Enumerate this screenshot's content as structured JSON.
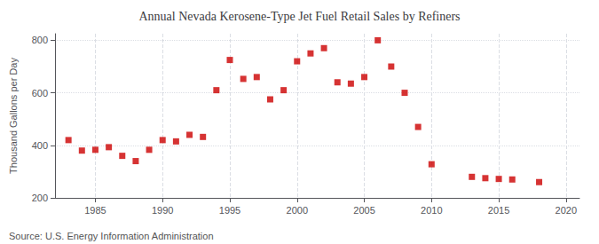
{
  "chart_data": {
    "type": "scatter",
    "title": "Annual Nevada Kerosene-Type Jet Fuel Retail Sales by Refiners",
    "ylabel": "Thousand Gallons per Day",
    "annotations": [
      "Source: U.S. Energy Information Administration"
    ],
    "x": [
      1983,
      1984,
      1985,
      1986,
      1987,
      1988,
      1989,
      1990,
      1991,
      1992,
      1993,
      1994,
      1995,
      1996,
      1997,
      1998,
      1999,
      2000,
      2001,
      2002,
      2003,
      2004,
      2005,
      2006,
      2007,
      2008,
      2009,
      2010,
      2013,
      2014,
      2015,
      2016,
      2018
    ],
    "values": [
      420,
      380,
      383,
      393,
      360,
      340,
      383,
      420,
      415,
      440,
      432,
      610,
      725,
      653,
      660,
      575,
      610,
      720,
      750,
      770,
      640,
      635,
      660,
      800,
      700,
      600,
      470,
      328,
      280,
      275,
      272,
      270,
      260
    ],
    "color": "#cc0000",
    "marker": "square",
    "xlim": [
      1982,
      2021
    ],
    "ylim": [
      200,
      825
    ],
    "xticks": [
      1985,
      1990,
      1995,
      2000,
      2005,
      2010,
      2015,
      2020
    ],
    "yticks": [
      200,
      400,
      600,
      800
    ],
    "grid": true
  }
}
